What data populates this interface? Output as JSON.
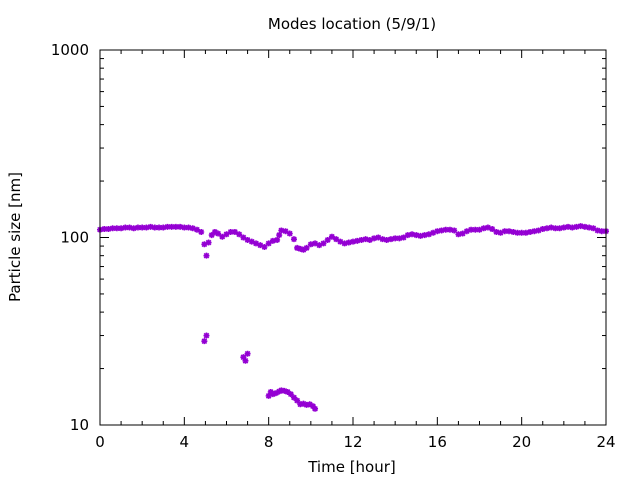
{
  "chart_data": {
    "type": "scatter",
    "title": "Modes location (5/9/1)",
    "xlabel": "Time [hour]",
    "ylabel": "Particle size [nm]",
    "xlim": [
      0,
      24
    ],
    "ylim": [
      10,
      1000
    ],
    "y_scale": "log",
    "x_ticks": [
      0,
      4,
      8,
      12,
      16,
      20,
      24
    ],
    "x_tick_labels": [
      "0",
      "4",
      "8",
      "12",
      "16",
      "20",
      "24"
    ],
    "y_ticks": [
      10,
      100,
      1000
    ],
    "y_tick_labels": [
      "10",
      "100",
      "1000"
    ],
    "grid": false,
    "legend": "none",
    "marker": "asterisk",
    "color": "#9400d3",
    "series": [
      {
        "values_xy": [
          [
            0.0,
            110
          ],
          [
            0.2,
            111
          ],
          [
            0.4,
            111
          ],
          [
            0.6,
            112
          ],
          [
            0.8,
            112
          ],
          [
            1.0,
            112
          ],
          [
            1.2,
            113
          ],
          [
            1.4,
            113
          ],
          [
            1.6,
            112
          ],
          [
            1.8,
            113
          ],
          [
            2.0,
            113
          ],
          [
            2.2,
            113
          ],
          [
            2.4,
            114
          ],
          [
            2.6,
            113
          ],
          [
            2.8,
            113
          ],
          [
            3.0,
            113
          ],
          [
            3.2,
            114
          ],
          [
            3.4,
            114
          ],
          [
            3.6,
            114
          ],
          [
            3.8,
            114
          ],
          [
            4.0,
            113
          ],
          [
            4.2,
            113
          ],
          [
            4.4,
            112
          ],
          [
            4.6,
            110
          ],
          [
            4.8,
            107
          ],
          [
            4.95,
            92
          ],
          [
            5.05,
            80
          ],
          [
            5.15,
            94
          ],
          [
            5.3,
            103
          ],
          [
            5.45,
            107
          ],
          [
            5.6,
            105
          ],
          [
            5.8,
            101
          ],
          [
            6.0,
            104
          ],
          [
            6.2,
            107
          ],
          [
            6.4,
            107
          ],
          [
            6.6,
            104
          ],
          [
            6.8,
            100
          ],
          [
            7.0,
            97
          ],
          [
            7.2,
            95
          ],
          [
            7.4,
            93
          ],
          [
            7.6,
            91
          ],
          [
            7.8,
            89
          ],
          [
            8.0,
            93
          ],
          [
            8.2,
            96
          ],
          [
            8.4,
            97
          ],
          [
            8.5,
            103
          ],
          [
            8.6,
            109
          ],
          [
            8.8,
            108
          ],
          [
            9.0,
            105
          ],
          [
            9.2,
            98
          ],
          [
            9.35,
            88
          ],
          [
            9.5,
            87
          ],
          [
            9.65,
            86
          ],
          [
            9.8,
            88
          ],
          [
            10.0,
            92
          ],
          [
            10.2,
            93
          ],
          [
            10.4,
            91
          ],
          [
            10.6,
            93
          ],
          [
            10.8,
            97
          ],
          [
            11.0,
            101
          ],
          [
            11.2,
            98
          ],
          [
            11.4,
            95
          ],
          [
            11.6,
            93
          ],
          [
            11.8,
            94
          ],
          [
            12.0,
            95
          ],
          [
            12.2,
            96
          ],
          [
            12.4,
            97
          ],
          [
            12.6,
            98
          ],
          [
            12.8,
            97
          ],
          [
            13.0,
            99
          ],
          [
            13.2,
            100
          ],
          [
            13.4,
            98
          ],
          [
            13.6,
            97
          ],
          [
            13.8,
            98
          ],
          [
            14.0,
            99
          ],
          [
            14.2,
            99
          ],
          [
            14.4,
            100
          ],
          [
            14.6,
            103
          ],
          [
            14.8,
            104
          ],
          [
            15.0,
            103
          ],
          [
            15.2,
            102
          ],
          [
            15.4,
            103
          ],
          [
            15.6,
            104
          ],
          [
            15.8,
            106
          ],
          [
            16.0,
            108
          ],
          [
            16.2,
            109
          ],
          [
            16.4,
            110
          ],
          [
            16.6,
            110
          ],
          [
            16.8,
            109
          ],
          [
            17.0,
            104
          ],
          [
            17.2,
            105
          ],
          [
            17.4,
            108
          ],
          [
            17.6,
            110
          ],
          [
            17.8,
            110
          ],
          [
            18.0,
            110
          ],
          [
            18.2,
            112
          ],
          [
            18.4,
            113
          ],
          [
            18.6,
            111
          ],
          [
            18.8,
            107
          ],
          [
            19.0,
            106
          ],
          [
            19.2,
            108
          ],
          [
            19.4,
            108
          ],
          [
            19.6,
            107
          ],
          [
            19.8,
            106
          ],
          [
            20.0,
            106
          ],
          [
            20.2,
            106
          ],
          [
            20.4,
            107
          ],
          [
            20.6,
            108
          ],
          [
            20.8,
            109
          ],
          [
            21.0,
            111
          ],
          [
            21.2,
            112
          ],
          [
            21.4,
            113
          ],
          [
            21.6,
            112
          ],
          [
            21.8,
            112
          ],
          [
            22.0,
            113
          ],
          [
            22.2,
            114
          ],
          [
            22.4,
            113
          ],
          [
            22.6,
            114
          ],
          [
            22.8,
            115
          ],
          [
            23.0,
            114
          ],
          [
            23.2,
            113
          ],
          [
            23.4,
            112
          ],
          [
            23.6,
            109
          ],
          [
            23.8,
            108
          ],
          [
            24.0,
            108
          ],
          [
            4.95,
            28
          ],
          [
            5.05,
            30
          ],
          [
            6.8,
            23
          ],
          [
            6.9,
            22
          ],
          [
            7.0,
            24
          ],
          [
            8.0,
            14.3
          ],
          [
            8.1,
            15.0
          ],
          [
            8.2,
            14.6
          ],
          [
            8.35,
            14.8
          ],
          [
            8.5,
            15.1
          ],
          [
            8.6,
            15.3
          ],
          [
            8.75,
            15.2
          ],
          [
            8.9,
            15.0
          ],
          [
            9.05,
            14.6
          ],
          [
            9.2,
            14.0
          ],
          [
            9.35,
            13.5
          ],
          [
            9.5,
            12.9
          ],
          [
            9.65,
            13.0
          ],
          [
            9.8,
            12.8
          ],
          [
            9.95,
            12.9
          ],
          [
            10.1,
            12.6
          ],
          [
            10.2,
            12.2
          ]
        ]
      }
    ]
  }
}
